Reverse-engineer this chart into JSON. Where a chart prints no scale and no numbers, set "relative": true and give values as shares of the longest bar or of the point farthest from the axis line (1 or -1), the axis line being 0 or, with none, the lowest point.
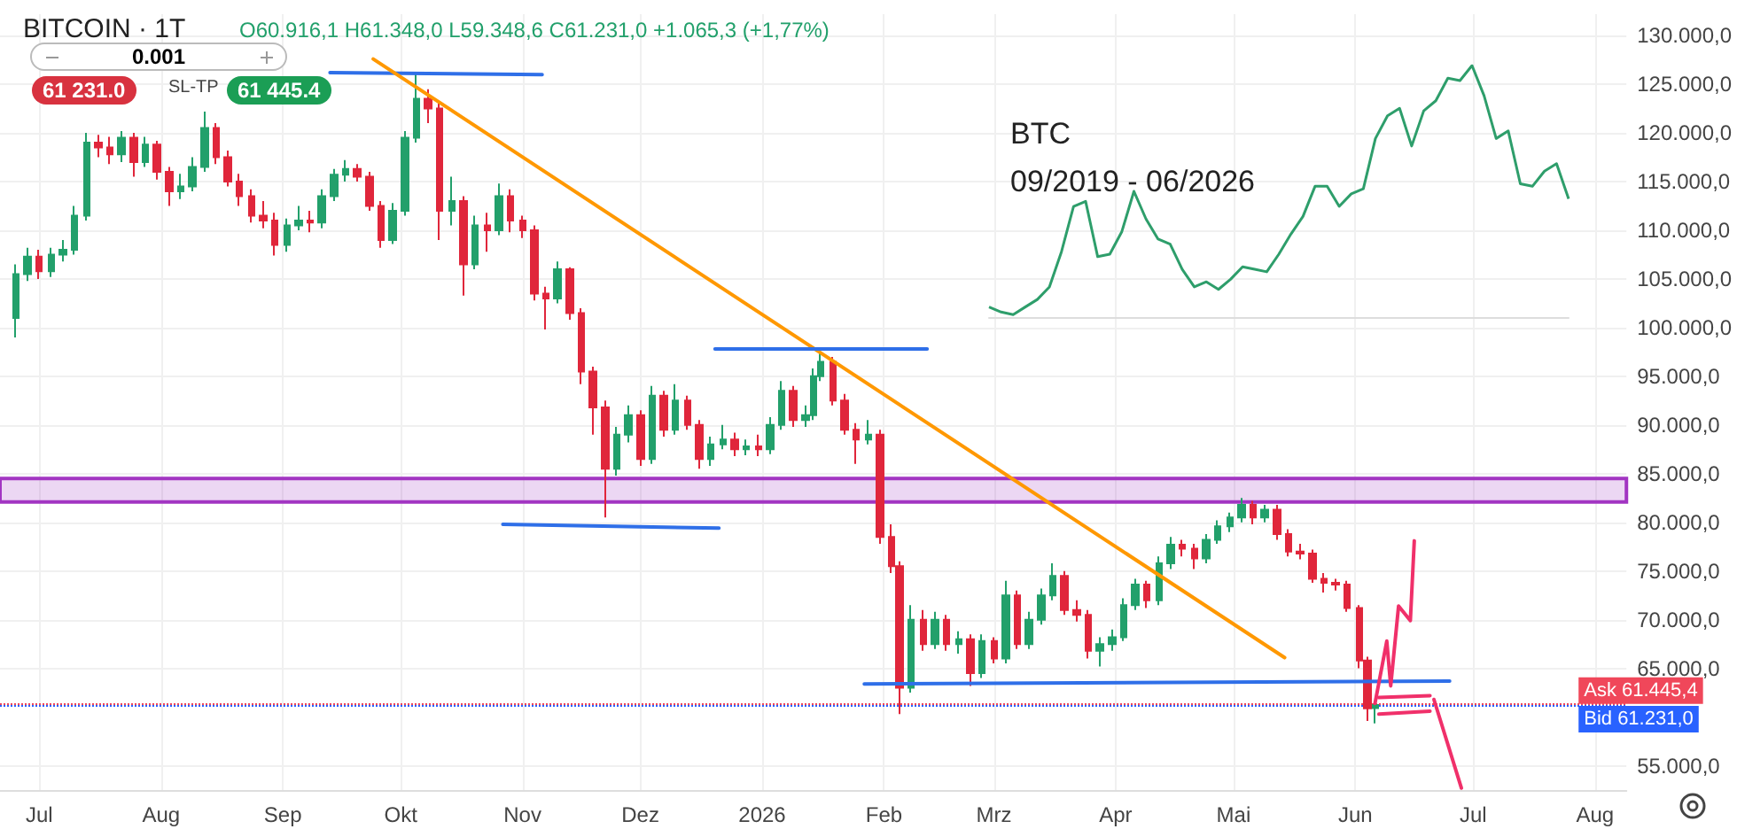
{
  "chart_data": [
    {
      "type": "candlestick",
      "title": "BITCOIN · 1T",
      "subtitle": "O60.916,1 H61.348,0 L59.348,6 C61.231,0 +1.065,3 (+1,77%)",
      "annotations": [
        "0.001",
        "61 231.0",
        "SL-TP",
        "61 445.4"
      ],
      "xlim": [
        "2025-06-21",
        "2026-08-09"
      ],
      "xticks": [
        {
          "value": "2025-07-01",
          "label": "Jul"
        },
        {
          "value": "2025-08-01",
          "label": "Aug"
        },
        {
          "value": "2025-09-01",
          "label": "Sep"
        },
        {
          "value": "2025-10-01",
          "label": "Okt"
        },
        {
          "value": "2025-11-01",
          "label": "Nov"
        },
        {
          "value": "2025-12-01",
          "label": "Dez"
        },
        {
          "value": "2026-01-01",
          "label": "2026"
        },
        {
          "value": "2026-02-01",
          "label": "Feb"
        },
        {
          "value": "2026-03-01",
          "label": "Mrz"
        },
        {
          "value": "2026-04-01",
          "label": "Apr"
        },
        {
          "value": "2026-05-01",
          "label": "Mai"
        },
        {
          "value": "2026-06-01",
          "label": "Jun"
        },
        {
          "value": "2026-07-01",
          "label": "Jul"
        },
        {
          "value": "2026-08-01",
          "label": "Aug"
        }
      ],
      "ylim": [
        52500,
        132200
      ],
      "yticks": [
        {
          "value": 55000,
          "label": "55.000,0"
        },
        {
          "value": 65000,
          "label": "65.000,0"
        },
        {
          "value": 70000,
          "label": "70.000,0"
        },
        {
          "value": 75000,
          "label": "75.000,0"
        },
        {
          "value": 80000,
          "label": "80.000,0"
        },
        {
          "value": 85000,
          "label": "85.000,0"
        },
        {
          "value": 90000,
          "label": "90.000,0"
        },
        {
          "value": 95000,
          "label": "95.000,0"
        },
        {
          "value": 100000,
          "label": "100.000,0"
        },
        {
          "value": 105000,
          "label": "105.000,0"
        },
        {
          "value": 110000,
          "label": "110.000,0"
        },
        {
          "value": 115000,
          "label": "115.000,0"
        },
        {
          "value": 120000,
          "label": "120.000,0"
        },
        {
          "value": 125000,
          "label": "125.000,0"
        },
        {
          "value": 130000,
          "label": "130.000,0"
        }
      ],
      "grid": true,
      "marker": "none",
      "line_style": "solid",
      "ref_lines": [
        {
          "axis": "y",
          "value": 61445.4,
          "label": "Ask 61.445,4",
          "color": "#f0475a",
          "line_style": "dotted"
        },
        {
          "axis": "y",
          "value": 61231.0,
          "label": "Bid 61.231,0",
          "color": "#2962ff",
          "line_style": "dotted"
        }
      ],
      "bands": [
        {
          "axis": "y",
          "from": 82100,
          "to": 84500,
          "color": "#a235c2"
        }
      ],
      "series": [
        {
          "type": "candlestick",
          "colors": [
            "#22a06b",
            "#22a06b",
            "#e0263b",
            "#22a06b",
            "#22a06b",
            "#22a06b",
            "#22a06b",
            "#e0263b",
            "#e0263b",
            "#22a06b",
            "#e0263b",
            "#22a06b",
            "#e0263b",
            "#e0263b",
            "#22a06b",
            "#22a06b",
            "#22a06b",
            "#e0263b",
            "#e0263b",
            "#e0263b",
            "#e0263b",
            "#e0263b",
            "#e0263b",
            "#22a06b",
            "#22a06b",
            "#e0263b",
            "#22a06b",
            "#22a06b",
            "#22a06b",
            "#e0263b",
            "#e0263b",
            "#e0263b",
            "#22a06b",
            "#22a06b",
            "#22a06b",
            "#e0263b",
            "#e0263b",
            "#22a06b",
            "#e0263b",
            "#22a06b",
            "#e0263b",
            "#22a06b",
            "#e0263b",
            "#e0263b",
            "#e0263b",
            "#e0263b",
            "#22a06b",
            "#e0263b",
            "#e0263b",
            "#e0263b",
            "#e0263b",
            "#22a06b",
            "#22a06b",
            "#e0263b",
            "#22a06b",
            "#e0263b",
            "#22a06b",
            "#e0263b",
            "#e0263b",
            "#22a06b",
            "#22a06b",
            "#e0263b",
            "#22a06b",
            "#e0263b",
            "#22a06b",
            "#22a06b",
            "#e0263b",
            "#22a06b",
            "#22a06b",
            "#22a06b",
            "#e0263b",
            "#e0263b",
            "#e0263b",
            "#22a06b",
            "#e0263b",
            "#e0263b",
            "#e0263b",
            "#22a06b",
            "#e0263b",
            "#22a06b",
            "#e0263b",
            "#22a06b",
            "#e0263b",
            "#22a06b",
            "#e0263b",
            "#22a06b",
            "#e0263b",
            "#22a06b",
            "#22a06b",
            "#22a06b",
            "#e0263b",
            "#e0263b",
            "#e0263b",
            "#22a06b",
            "#22a06b",
            "#22a06b",
            "#22a06b",
            "#e0263b",
            "#22a06b",
            "#22a06b",
            "#e0263b",
            "#e0263b",
            "#22a06b",
            "#22a06b",
            "#22a06b",
            "#22a06b",
            "#e0263b",
            "#22a06b",
            "#e0263b",
            "#e0263b",
            "#e0263b",
            "#e0263b",
            "#e0263b",
            "#e0263b",
            "#e0263b",
            "#e0263b",
            "#e0263b",
            "#22a06b"
          ],
          "x": [
            "2025-06-25",
            "2025-06-28",
            "2025-07-01",
            "2025-07-04",
            "2025-07-07",
            "2025-07-10",
            "2025-07-13",
            "2025-07-16",
            "2025-07-19",
            "2025-07-22",
            "2025-07-25",
            "2025-07-28",
            "2025-07-31",
            "2025-08-03",
            "2025-08-06",
            "2025-08-09",
            "2025-08-12",
            "2025-08-15",
            "2025-08-18",
            "2025-08-21",
            "2025-08-24",
            "2025-08-27",
            "2025-08-30",
            "2025-09-02",
            "2025-09-05",
            "2025-09-08",
            "2025-09-11",
            "2025-09-14",
            "2025-09-17",
            "2025-09-20",
            "2025-09-23",
            "2025-09-26",
            "2025-09-29",
            "2025-10-02",
            "2025-10-05",
            "2025-10-08",
            "2025-10-11",
            "2025-10-14",
            "2025-10-17",
            "2025-10-20",
            "2025-10-23",
            "2025-10-26",
            "2025-10-29",
            "2025-11-01",
            "2025-11-04",
            "2025-11-07",
            "2025-11-10",
            "2025-11-13",
            "2025-11-16",
            "2025-11-19",
            "2025-11-22",
            "2025-11-25",
            "2025-11-28",
            "2025-12-01",
            "2025-12-04",
            "2025-12-07",
            "2025-12-10",
            "2025-12-13",
            "2025-12-16",
            "2025-12-19",
            "2025-12-22",
            "2025-12-25",
            "2025-12-28",
            "2025-12-31",
            "2026-01-03",
            "2026-01-06",
            "2026-01-09",
            "2026-01-12",
            "2026-01-14",
            "2026-01-16",
            "2026-01-19",
            "2026-01-22",
            "2026-01-25",
            "2026-01-28",
            "2026-01-31",
            "2026-02-03",
            "2026-02-05",
            "2026-02-08",
            "2026-02-11",
            "2026-02-14",
            "2026-02-17",
            "2026-02-20",
            "2026-02-23",
            "2026-02-26",
            "2026-03-01",
            "2026-03-04",
            "2026-03-07",
            "2026-03-10",
            "2026-03-13",
            "2026-03-16",
            "2026-03-19",
            "2026-03-22",
            "2026-03-25",
            "2026-03-28",
            "2026-03-31",
            "2026-04-03",
            "2026-04-06",
            "2026-04-09",
            "2026-04-12",
            "2026-04-15",
            "2026-04-18",
            "2026-04-21",
            "2026-04-24",
            "2026-04-27",
            "2026-04-30",
            "2026-05-03",
            "2026-05-06",
            "2026-05-09",
            "2026-05-12",
            "2026-05-15",
            "2026-05-18",
            "2026-05-21",
            "2026-05-24",
            "2026-05-27",
            "2026-05-30",
            "2026-06-02",
            "2026-06-04",
            "2026-06-06"
          ],
          "ohlc": [
            [
              101000,
              106500,
              99000,
              105500
            ],
            [
              105500,
              108200,
              104800,
              107300
            ],
            [
              107300,
              108000,
              105000,
              105800
            ],
            [
              105800,
              108200,
              105200,
              107500
            ],
            [
              107500,
              109000,
              106800,
              108000
            ],
            [
              108000,
              112500,
              107500,
              111500
            ],
            [
              111500,
              120000,
              111000,
              119000
            ],
            [
              119000,
              119800,
              117500,
              118500
            ],
            [
              118500,
              119600,
              116800,
              117800
            ],
            [
              117800,
              120200,
              117000,
              119500
            ],
            [
              119500,
              120000,
              115500,
              117000
            ],
            [
              117000,
              119600,
              116500,
              118800
            ],
            [
              118800,
              119200,
              115200,
              116000
            ],
            [
              116000,
              116500,
              112500,
              114000
            ],
            [
              114000,
              115800,
              113200,
              114500
            ],
            [
              114500,
              117500,
              114000,
              116500
            ],
            [
              116500,
              122200,
              116000,
              120500
            ],
            [
              120500,
              121000,
              116800,
              117500
            ],
            [
              117500,
              118200,
              114500,
              115000
            ],
            [
              115000,
              115800,
              112500,
              113500
            ],
            [
              113500,
              114200,
              110800,
              111500
            ],
            [
              111500,
              113000,
              110200,
              111000
            ],
            [
              111000,
              111800,
              107400,
              108500
            ],
            [
              108500,
              111200,
              107800,
              110500
            ],
            [
              110500,
              112500,
              110000,
              111000
            ],
            [
              111000,
              112000,
              109800,
              110800
            ],
            [
              110800,
              114200,
              110200,
              113500
            ],
            [
              113500,
              116300,
              113000,
              115700
            ],
            [
              115700,
              117200,
              115000,
              116300
            ],
            [
              116300,
              116800,
              115000,
              115500
            ],
            [
              115500,
              116000,
              112000,
              112500
            ],
            [
              112500,
              113000,
              108200,
              109000
            ],
            [
              109000,
              112800,
              108600,
              112000
            ],
            [
              112000,
              120200,
              111500,
              119500
            ],
            [
              119500,
              126200,
              119000,
              123500
            ],
            [
              123500,
              124500,
              121000,
              122500
            ],
            [
              122500,
              123000,
              109000,
              112000
            ],
            [
              112000,
              115500,
              110500,
              113000
            ],
            [
              113000,
              113500,
              103300,
              106500
            ],
            [
              106500,
              111500,
              106000,
              110500
            ],
            [
              110500,
              111800,
              107800,
              110000
            ],
            [
              110000,
              114800,
              109500,
              113500
            ],
            [
              113500,
              114200,
              109800,
              111000
            ],
            [
              111000,
              111500,
              109200,
              110000
            ],
            [
              110000,
              110500,
              102800,
              103500
            ],
            [
              103500,
              104200,
              99800,
              103000
            ],
            [
              103000,
              106800,
              102500,
              106000
            ],
            [
              106000,
              106200,
              100800,
              101500
            ],
            [
              101500,
              102000,
              94200,
              95500
            ],
            [
              95500,
              96000,
              89000,
              91800
            ],
            [
              91800,
              92500,
              80500,
              85500
            ],
            [
              85500,
              89800,
              84800,
              89000
            ],
            [
              89000,
              92000,
              88200,
              91000
            ],
            [
              91000,
              91500,
              85800,
              86500
            ],
            [
              86500,
              94000,
              86000,
              93000
            ],
            [
              93000,
              93500,
              88800,
              89500
            ],
            [
              89500,
              94200,
              89000,
              92500
            ],
            [
              92500,
              93000,
              89500,
              90000
            ],
            [
              90000,
              90500,
              85500,
              86500
            ],
            [
              86500,
              88800,
              85800,
              88000
            ],
            [
              88000,
              90000,
              87500,
              88500
            ],
            [
              88500,
              89200,
              86800,
              87500
            ],
            [
              87500,
              88500,
              86900,
              87800
            ],
            [
              87800,
              89000,
              86800,
              87500
            ],
            [
              87500,
              90800,
              87000,
              90000
            ],
            [
              90000,
              94500,
              89500,
              93500
            ],
            [
              93500,
              94000,
              89800,
              90500
            ],
            [
              90500,
              92000,
              89800,
              91000
            ],
            [
              91000,
              95800,
              90500,
              95000
            ],
            [
              95000,
              97800,
              94500,
              96500
            ],
            [
              96500,
              97000,
              92000,
              92500
            ],
            [
              92500,
              93200,
              89000,
              89500
            ],
            [
              89500,
              90200,
              86000,
              88500
            ],
            [
              88500,
              90500,
              88000,
              89000
            ],
            [
              89000,
              89500,
              77800,
              78500
            ],
            [
              78500,
              79800,
              74800,
              75500
            ],
            [
              75500,
              76000,
              60300,
              63000
            ],
            [
              63000,
              71500,
              62500,
              70000
            ],
            [
              70000,
              71000,
              66800,
              67500
            ],
            [
              67500,
              70800,
              67000,
              70000
            ],
            [
              70000,
              70500,
              66800,
              67500
            ],
            [
              67500,
              68800,
              66500,
              68000
            ],
            [
              68000,
              68500,
              63200,
              64500
            ],
            [
              64500,
              68500,
              64000,
              67800
            ],
            [
              67800,
              68200,
              65500,
              66000
            ],
            [
              66000,
              74000,
              65500,
              72500
            ],
            [
              72500,
              73000,
              67000,
              67500
            ],
            [
              67500,
              70800,
              67000,
              70000
            ],
            [
              70000,
              73200,
              69500,
              72500
            ],
            [
              72500,
              75800,
              72000,
              74500
            ],
            [
              74500,
              75000,
              70500,
              71000
            ],
            [
              71000,
              72000,
              69800,
              70500
            ],
            [
              70500,
              71000,
              66000,
              66800
            ],
            [
              66800,
              68200,
              65200,
              67500
            ],
            [
              67500,
              69000,
              66800,
              68200
            ],
            [
              68200,
              72200,
              67800,
              71500
            ],
            [
              71500,
              74200,
              71000,
              73600
            ],
            [
              73600,
              74000,
              71200,
              72000
            ],
            [
              72000,
              76500,
              71500,
              75800
            ],
            [
              75800,
              78500,
              75200,
              77700
            ],
            [
              77700,
              78200,
              76500,
              77300
            ],
            [
              77300,
              77800,
              75200,
              76300
            ],
            [
              76300,
              78800,
              75800,
              78200
            ],
            [
              78200,
              80200,
              77800,
              79600
            ],
            [
              79600,
              81000,
              79000,
              80500
            ],
            [
              80500,
              82500,
              80000,
              81800
            ],
            [
              81800,
              82200,
              79800,
              80500
            ],
            [
              80500,
              81800,
              80000,
              81300
            ],
            [
              81300,
              81800,
              78200,
              78800
            ],
            [
              78800,
              79300,
              76500,
              77000
            ],
            [
              77000,
              77800,
              76200,
              76800
            ],
            [
              76800,
              77200,
              73800,
              74200
            ],
            [
              74200,
              74800,
              72800,
              73800
            ],
            [
              73800,
              74200,
              73000,
              73600
            ],
            [
              73600,
              74000,
              70800,
              71200
            ],
            [
              71200,
              71500,
              65000,
              65800
            ],
            [
              65800,
              66200,
              59600,
              60900
            ],
            [
              60916.1,
              61348,
              59348.6,
              61231
            ]
          ]
        },
        {
          "type": "line",
          "color": "#2f6fe8",
          "x": [
            "2025-09-13",
            "2025-11-06"
          ],
          "values": [
            126200,
            126000
          ]
        },
        {
          "type": "line",
          "color": "#ff9800",
          "x": [
            "2025-09-24",
            "2026-05-14"
          ],
          "values": [
            127600,
            66100
          ]
        },
        {
          "type": "line",
          "color": "#2f6fe8",
          "x": [
            "2025-12-20",
            "2026-02-12"
          ],
          "values": [
            97800,
            97800
          ]
        },
        {
          "type": "line",
          "color": "#2f6fe8",
          "x": [
            "2025-10-27",
            "2025-12-21"
          ],
          "values": [
            79800,
            79400
          ]
        },
        {
          "type": "line",
          "color": "#2f6fe8",
          "x": [
            "2026-01-27",
            "2026-06-25"
          ],
          "values": [
            63400,
            63700
          ]
        },
        {
          "type": "line",
          "color": "#f0306a",
          "x": [
            "2026-06-06",
            "2026-06-09",
            "2026-06-10",
            "2026-06-12",
            "2026-06-15",
            "2026-06-16"
          ],
          "values": [
            61400,
            67800,
            63200,
            71400,
            69900,
            78100
          ]
        },
        {
          "type": "line",
          "color": "#f0306a",
          "x": [
            "2026-06-07",
            "2026-06-20"
          ],
          "values": [
            62000,
            62200
          ]
        },
        {
          "type": "line",
          "color": "#f0306a",
          "x": [
            "2026-06-07",
            "2026-06-20"
          ],
          "values": [
            60300,
            60600
          ]
        },
        {
          "type": "line",
          "color": "#f0306a",
          "x": [
            "2026-06-21",
            "2026-06-28"
          ],
          "values": [
            61800,
            52700
          ]
        }
      ]
    },
    {
      "type": "line",
      "title": "BTC",
      "subtitle": "09/2019 - 06/2026",
      "relative": true,
      "marker": "none",
      "categories": [
        null,
        null,
        null,
        null,
        null,
        null,
        null,
        null,
        null,
        null,
        null,
        null,
        null,
        null,
        null,
        null,
        null,
        null,
        null,
        null,
        null,
        null,
        null,
        null,
        null,
        null,
        null,
        null,
        null,
        null,
        null,
        null,
        null,
        null,
        null,
        null,
        null,
        null,
        null,
        null,
        null,
        null,
        null,
        null,
        null,
        null,
        null,
        null,
        null
      ],
      "series": [
        {
          "color": "#2e9e6b",
          "values": [
            0.04,
            0.02,
            0.01,
            0.04,
            0.07,
            0.12,
            0.26,
            0.44,
            0.46,
            0.24,
            0.25,
            0.34,
            0.5,
            0.39,
            0.31,
            0.29,
            0.19,
            0.12,
            0.14,
            0.11,
            0.15,
            0.2,
            0.19,
            0.18,
            0.25,
            0.33,
            0.4,
            0.52,
            0.52,
            0.44,
            0.49,
            0.51,
            0.71,
            0.8,
            0.83,
            0.68,
            0.82,
            0.86,
            0.95,
            0.94,
            1,
            0.88,
            0.71,
            0.74,
            0.53,
            0.52,
            0.58,
            0.61,
            0.47
          ]
        }
      ]
    }
  ]
}
